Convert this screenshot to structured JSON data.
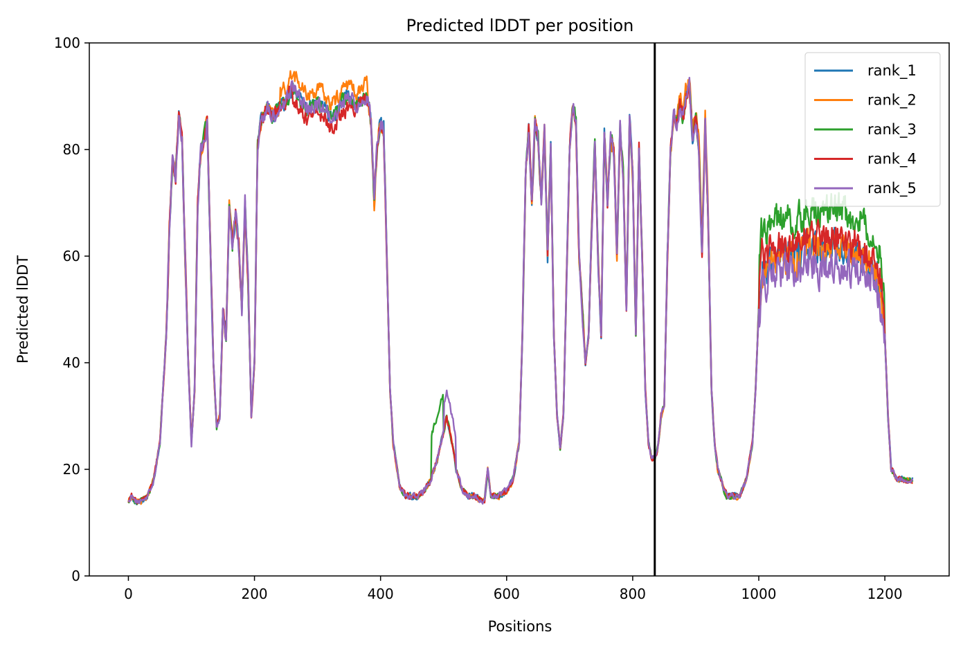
{
  "chart_data": {
    "type": "line",
    "title": "Predicted lDDT per position",
    "xlabel": "Positions",
    "ylabel": "Predicted lDDT",
    "xlim": [
      -62,
      1302
    ],
    "ylim": [
      0,
      100
    ],
    "xticks": [
      0,
      200,
      400,
      600,
      800,
      1000,
      1200
    ],
    "yticks": [
      0,
      20,
      40,
      60,
      80,
      100
    ],
    "grid": false,
    "legend_position": "top-right",
    "vertical_line": {
      "x": 835,
      "color": "#000000"
    },
    "series": [
      {
        "name": "rank_1",
        "color": "#1f77b4"
      },
      {
        "name": "rank_2",
        "color": "#ff7f0e"
      },
      {
        "name": "rank_3",
        "color": "#2ca02c"
      },
      {
        "name": "rank_4",
        "color": "#d62728"
      },
      {
        "name": "rank_5",
        "color": "#9467bd"
      }
    ],
    "profile": {
      "x": [
        0,
        5,
        10,
        20,
        30,
        40,
        50,
        60,
        65,
        70,
        75,
        80,
        85,
        90,
        95,
        100,
        105,
        110,
        115,
        120,
        125,
        130,
        135,
        140,
        145,
        150,
        155,
        160,
        165,
        170,
        175,
        180,
        185,
        190,
        195,
        200,
        205,
        210,
        220,
        230,
        240,
        250,
        260,
        270,
        280,
        290,
        300,
        310,
        320,
        330,
        340,
        350,
        360,
        370,
        380,
        385,
        390,
        395,
        400,
        405,
        410,
        415,
        420,
        430,
        440,
        450,
        460,
        470,
        480,
        490,
        500,
        505,
        510,
        515,
        520,
        530,
        540,
        550,
        560,
        565,
        570,
        575,
        580,
        590,
        600,
        610,
        620,
        625,
        630,
        635,
        640,
        645,
        650,
        655,
        660,
        665,
        670,
        675,
        680,
        685,
        690,
        695,
        700,
        705,
        710,
        715,
        720,
        725,
        730,
        735,
        740,
        745,
        750,
        755,
        760,
        765,
        770,
        775,
        780,
        785,
        790,
        795,
        800,
        805,
        810,
        815,
        820,
        825,
        830,
        835,
        840,
        845,
        850,
        855,
        860,
        865,
        870,
        875,
        880,
        885,
        890,
        895,
        900,
        905,
        910,
        915,
        920,
        925,
        930,
        935,
        940,
        945,
        950,
        960,
        970,
        980,
        990,
        995,
        1000,
        1005,
        1010,
        1020,
        1040,
        1060,
        1080,
        1100,
        1120,
        1140,
        1160,
        1180,
        1190,
        1195,
        1200,
        1205,
        1210,
        1220,
        1230,
        1240,
        1244
      ],
      "y": [
        14,
        15,
        14,
        14,
        15,
        18,
        25,
        45,
        65,
        78,
        75,
        86,
        82,
        60,
        40,
        25,
        35,
        70,
        80,
        82,
        85,
        62,
        40,
        28,
        30,
        50,
        45,
        70,
        62,
        68,
        62,
        50,
        70,
        55,
        30,
        40,
        80,
        85,
        88,
        86,
        88,
        89,
        92,
        90,
        88,
        88,
        89,
        88,
        86,
        87,
        89,
        90,
        88,
        89,
        90,
        85,
        70,
        82,
        85,
        84,
        60,
        35,
        25,
        17,
        15,
        15,
        15,
        16,
        18,
        22,
        27,
        30,
        27,
        24,
        20,
        16,
        15,
        15,
        14,
        14,
        20,
        15,
        15,
        15,
        16,
        18,
        25,
        45,
        75,
        84,
        70,
        85,
        82,
        70,
        84,
        60,
        80,
        45,
        30,
        24,
        30,
        55,
        80,
        89,
        85,
        60,
        50,
        40,
        45,
        65,
        82,
        60,
        45,
        84,
        70,
        82,
        80,
        60,
        85,
        75,
        50,
        86,
        75,
        45,
        80,
        60,
        35,
        25,
        22,
        22,
        24,
        30,
        32,
        60,
        80,
        86,
        85,
        88,
        86,
        90,
        92,
        82,
        86,
        80,
        60,
        85,
        65,
        35,
        25,
        20,
        18,
        16,
        15,
        15,
        15,
        18,
        25,
        35,
        50,
        58,
        58,
        60,
        60,
        60,
        62,
        60,
        62,
        61,
        60,
        58,
        56,
        52,
        45,
        30,
        20,
        18,
        18,
        18,
        18
      ]
    }
  }
}
